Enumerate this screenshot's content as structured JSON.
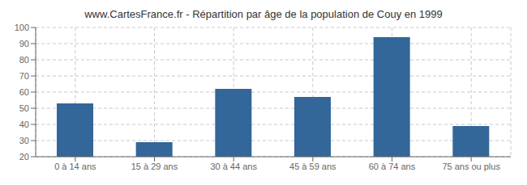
{
  "chart_data": {
    "type": "bar",
    "title": "www.CartesFrance.fr - Répartition par âge de la population de Couy en 1999",
    "categories": [
      "0 à 14 ans",
      "15 à 29 ans",
      "30 à 44 ans",
      "45 à 59 ans",
      "60 à 74 ans",
      "75 ans ou plus"
    ],
    "values": [
      53,
      29,
      62,
      57,
      94,
      39
    ],
    "color": "#336699",
    "ylim": [
      20,
      100
    ],
    "yticks": [
      20,
      30,
      40,
      50,
      60,
      70,
      80,
      90,
      100
    ],
    "grid": true
  }
}
